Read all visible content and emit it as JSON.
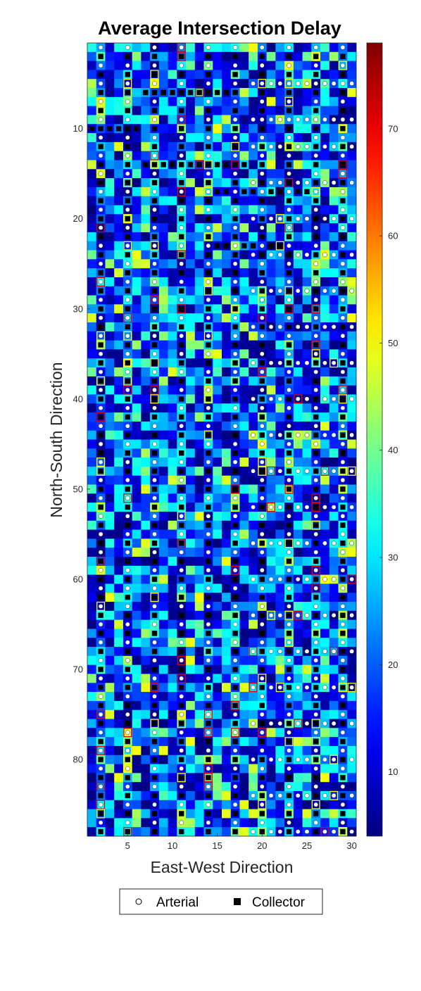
{
  "chart_data": {
    "type": "heatmap",
    "title": "Average Intersection Delay",
    "xlabel": "East-West Direction",
    "ylabel": "North-South Direction",
    "x_range": [
      1,
      30
    ],
    "y_range": [
      1,
      88
    ],
    "y_reversed": true,
    "x_ticks": [
      5,
      10,
      15,
      20,
      25,
      30
    ],
    "y_ticks": [
      10,
      20,
      30,
      40,
      50,
      60,
      70,
      80
    ],
    "colorbar": {
      "colormap": "jet",
      "min": 4,
      "max": 78,
      "ticks": [
        10,
        20,
        30,
        40,
        50,
        60,
        70
      ]
    },
    "grid": false,
    "legend": {
      "placement": "bottom",
      "entries": [
        {
          "name": "Arterial",
          "marker": "white circle"
        },
        {
          "name": "Collector",
          "marker": "black square"
        }
      ]
    },
    "arterial_columns": [
      2,
      5,
      8,
      11,
      14,
      17,
      20,
      23,
      26,
      29
    ],
    "collector_columns": [
      2,
      5,
      8,
      11,
      14,
      17,
      20,
      23,
      26,
      29
    ],
    "arterial_rows": [
      5,
      9,
      12,
      16,
      20,
      24,
      28,
      32,
      36,
      40,
      44,
      48,
      52,
      56,
      60,
      64,
      68,
      72,
      76,
      80,
      84,
      88
    ],
    "collector_rows": [
      6,
      10,
      14,
      17,
      23
    ],
    "colors": {
      "highlight_outline_yellow": "#ffff00",
      "highlight_outline_red": "#e00000"
    }
  }
}
